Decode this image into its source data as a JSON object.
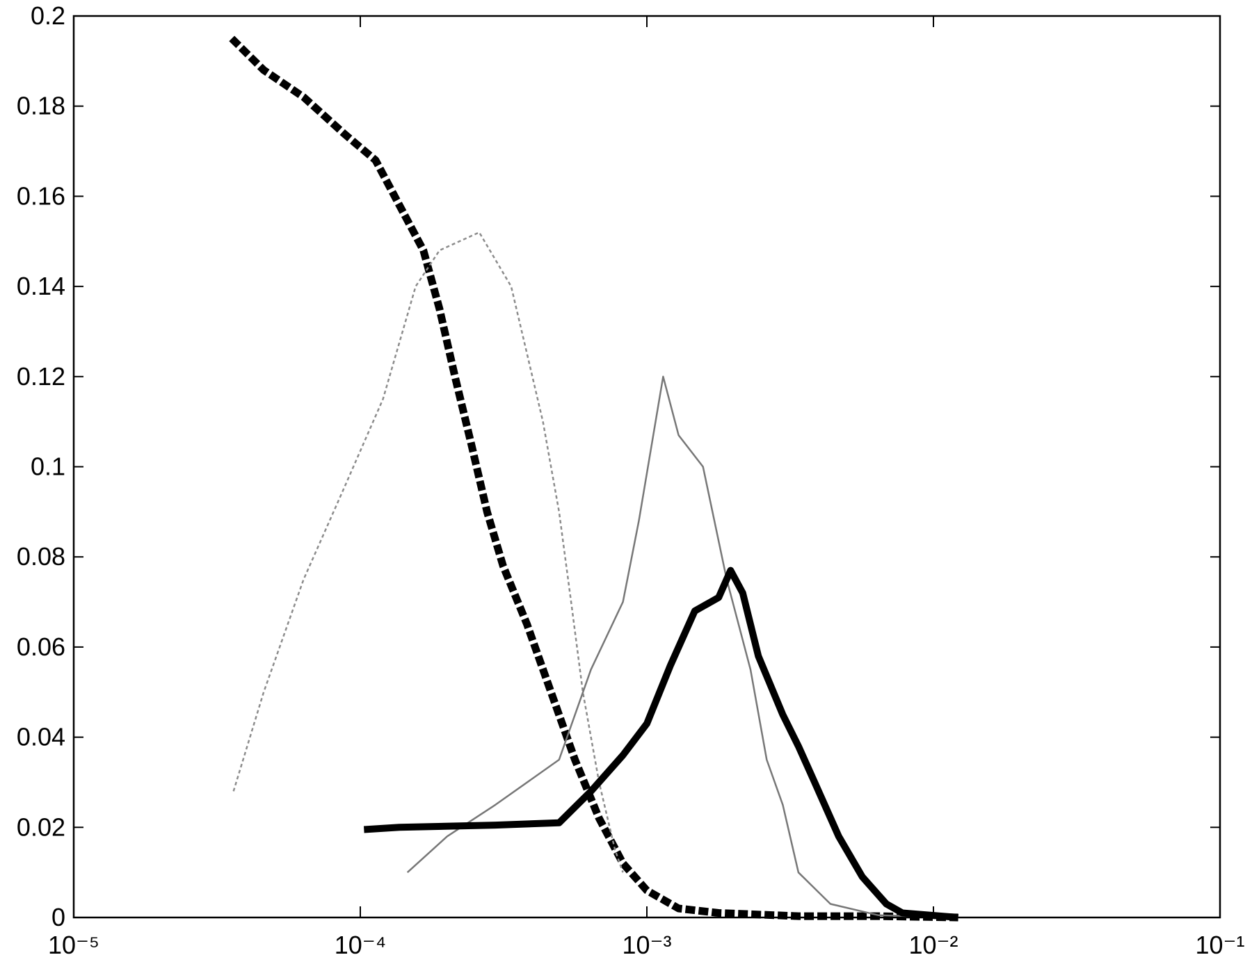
{
  "chart_data": {
    "type": "line",
    "xscale": "log",
    "xlim": [
      1e-05,
      0.1
    ],
    "ylim": [
      0,
      0.2
    ],
    "xticks": [
      {
        "value": 1e-05,
        "label": "10⁻⁵"
      },
      {
        "value": 0.0001,
        "label": "10⁻⁴"
      },
      {
        "value": 0.001,
        "label": "10⁻³"
      },
      {
        "value": 0.01,
        "label": "10⁻²"
      },
      {
        "value": 0.1,
        "label": "10⁻¹"
      }
    ],
    "yticks": [
      0,
      0.02,
      0.04,
      0.06,
      0.08,
      0.1,
      0.12,
      0.14,
      0.16,
      0.18,
      0.2
    ],
    "grid": false,
    "series": [
      {
        "color": "#000000",
        "style": "dashed-thick",
        "x": [
          3.56e-05,
          4.6e-05,
          6.34e-05,
          8.74e-05,
          0.000113,
          0.000137,
          0.000166,
          0.000189,
          0.000214,
          0.000244,
          0.000277,
          0.000315,
          0.000382,
          0.000463,
          0.000561,
          0.000681,
          0.000825,
          0.001,
          0.00129,
          0.00178,
          0.00338,
          0.00643,
          0.0122
        ],
        "values": [
          0.195,
          0.188,
          0.182,
          0.174,
          0.168,
          0.158,
          0.148,
          0.135,
          0.12,
          0.105,
          0.09,
          0.078,
          0.065,
          0.05,
          0.035,
          0.022,
          0.012,
          0.006,
          0.002,
          0.001,
          0.0003,
          0.0003,
          0
        ]
      },
      {
        "color": "#8c8c8c",
        "style": "dotted-thin",
        "x": [
          3.61e-05,
          4.6e-05,
          6.34e-05,
          8.74e-05,
          0.00012,
          0.000156,
          0.000189,
          0.00026,
          0.000336,
          0.000382,
          0.000434,
          0.000494,
          0.000544,
          0.000598,
          0.000681,
          0.000774,
          0.000825
        ],
        "values": [
          0.028,
          0.05,
          0.075,
          0.095,
          0.115,
          0.14,
          0.148,
          0.152,
          0.14,
          0.125,
          0.11,
          0.09,
          0.07,
          0.05,
          0.03,
          0.015,
          0.01
        ]
      },
      {
        "color": "#777777",
        "style": "solid-thin",
        "x": [
          0.000146,
          0.000201,
          0.000296,
          0.000494,
          0.000638,
          0.000825,
          0.000938,
          0.00114,
          0.00129,
          0.00157,
          0.0019,
          0.0023,
          0.00262,
          0.00298,
          0.00338,
          0.00437,
          0.00643,
          0.0122
        ],
        "values": [
          0.01,
          0.018,
          0.025,
          0.035,
          0.055,
          0.07,
          0.088,
          0.12,
          0.107,
          0.1,
          0.075,
          0.055,
          0.035,
          0.025,
          0.01,
          0.003,
          0.0005,
          0
        ]
      },
      {
        "color": "#000000",
        "style": "solid-thick",
        "x": [
          0.000103,
          0.000137,
          0.000296,
          0.000494,
          0.000638,
          0.000825,
          0.001,
          0.00121,
          0.00147,
          0.00178,
          0.00196,
          0.00216,
          0.00245,
          0.00298,
          0.00338,
          0.00385,
          0.00467,
          0.00565,
          0.00685,
          0.00779,
          0.0122
        ],
        "values": [
          0.0195,
          0.02,
          0.0205,
          0.021,
          0.028,
          0.036,
          0.043,
          0.056,
          0.068,
          0.071,
          0.077,
          0.072,
          0.058,
          0.045,
          0.038,
          0.03,
          0.018,
          0.009,
          0.003,
          0.001,
          0
        ]
      }
    ]
  }
}
